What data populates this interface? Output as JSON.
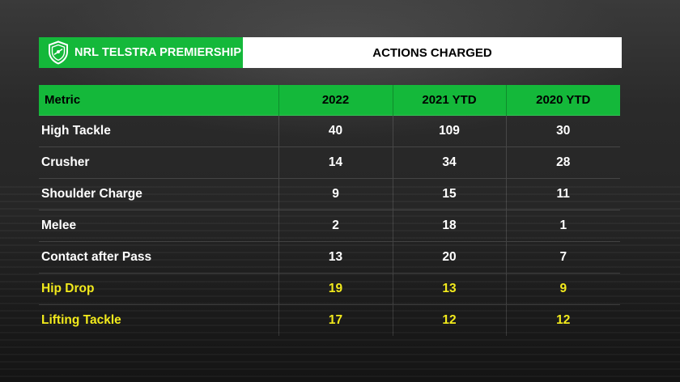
{
  "header": {
    "brand_text": "NRL TELSTRA PREMIERSHIP",
    "title": "ACTIONS CHARGED",
    "brand_color": "#14b83a",
    "logo_icon": "nrl-shield-icon"
  },
  "table": {
    "columns": [
      "Metric",
      "2022",
      "2021 YTD",
      "2020 YTD"
    ],
    "rows": [
      {
        "metric": "High Tackle",
        "y2022": "40",
        "y2021": "109",
        "y2020": "30",
        "highlight": false
      },
      {
        "metric": "Crusher",
        "y2022": "14",
        "y2021": "34",
        "y2020": "28",
        "highlight": false
      },
      {
        "metric": "Shoulder Charge",
        "y2022": "9",
        "y2021": "15",
        "y2020": "11",
        "highlight": false
      },
      {
        "metric": "Melee",
        "y2022": "2",
        "y2021": "18",
        "y2020": "1",
        "highlight": false
      },
      {
        "metric": "Contact after Pass",
        "y2022": "13",
        "y2021": "20",
        "y2020": "7",
        "highlight": false
      },
      {
        "metric": "Hip Drop",
        "y2022": "19",
        "y2021": "13",
        "y2020": "9",
        "highlight": true
      },
      {
        "metric": "Lifting Tackle",
        "y2022": "17",
        "y2021": "12",
        "y2020": "12",
        "highlight": true
      }
    ],
    "highlight_color": "#f2ea1c"
  }
}
